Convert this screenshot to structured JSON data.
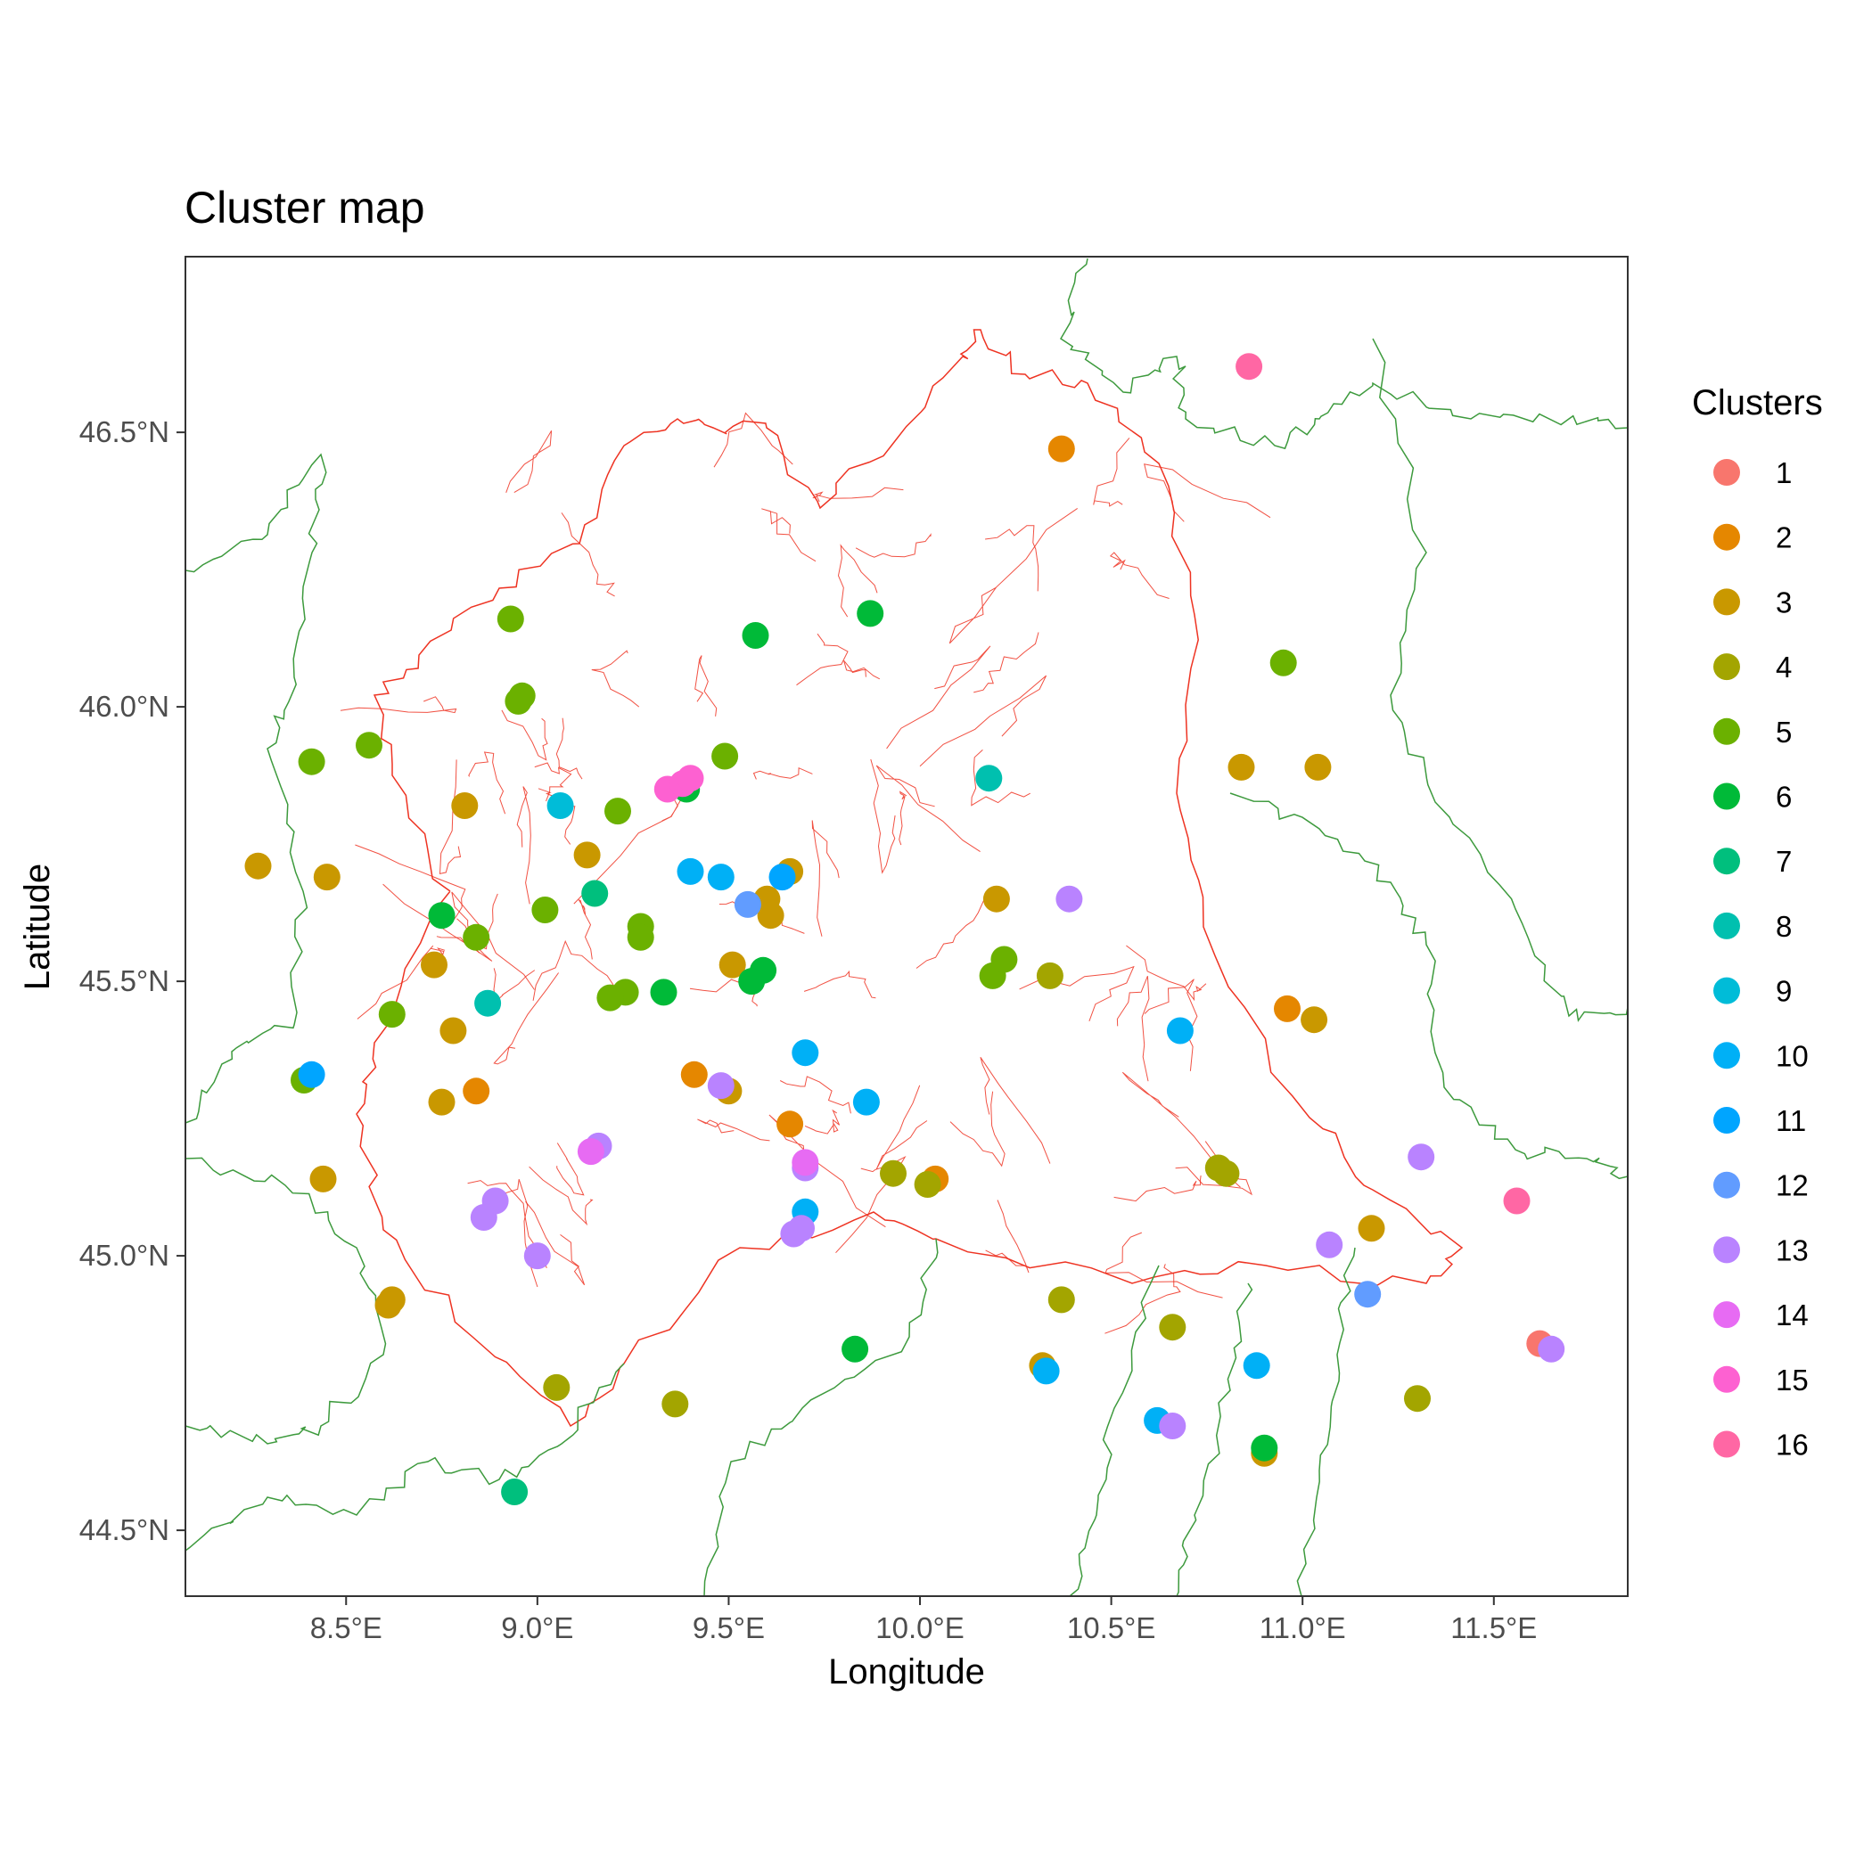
{
  "chart_data": {
    "type": "scatter",
    "title": "Cluster map",
    "xlabel": "Longitude",
    "ylabel": "Latitude",
    "xlim": [
      8.08,
      11.85
    ],
    "ylim": [
      44.38,
      46.82
    ],
    "x_ticks": [
      8.5,
      9.0,
      9.5,
      10.0,
      10.5,
      11.0,
      11.5
    ],
    "x_tick_labels": [
      "8.5°E",
      "9.0°E",
      "9.5°E",
      "10.0°E",
      "10.5°E",
      "11.0°E",
      "11.5°E"
    ],
    "y_ticks": [
      44.5,
      45.0,
      45.5,
      46.0,
      46.5
    ],
    "y_tick_labels": [
      "44.5°N",
      "45.0°N",
      "45.5°N",
      "46.0°N",
      "46.5°N"
    ],
    "grid": false,
    "legend_position": "right",
    "legend": {
      "title": "Clusters",
      "entries": [
        {
          "label": "1",
          "color": "#F8766D"
        },
        {
          "label": "2",
          "color": "#E58700"
        },
        {
          "label": "3",
          "color": "#C99800"
        },
        {
          "label": "4",
          "color": "#A3A500"
        },
        {
          "label": "5",
          "color": "#6BB100"
        },
        {
          "label": "6",
          "color": "#00BA38"
        },
        {
          "label": "7",
          "color": "#00BF7D"
        },
        {
          "label": "8",
          "color": "#00C0AF"
        },
        {
          "label": "9",
          "color": "#00BCD8"
        },
        {
          "label": "10",
          "color": "#00B0F6"
        },
        {
          "label": "11",
          "color": "#00A5FF"
        },
        {
          "label": "12",
          "color": "#619CFF"
        },
        {
          "label": "13",
          "color": "#B983FF"
        },
        {
          "label": "14",
          "color": "#E76BF3"
        },
        {
          "label": "15",
          "color": "#FD61D1"
        },
        {
          "label": "16",
          "color": "#FF67A4"
        }
      ]
    },
    "series": [
      {
        "name": "1",
        "points": [
          [
            11.62,
            44.84
          ]
        ]
      },
      {
        "name": "2",
        "points": [
          [
            10.37,
            46.47
          ],
          [
            10.96,
            45.45
          ],
          [
            9.41,
            45.33
          ],
          [
            8.84,
            45.3
          ],
          [
            9.66,
            45.24
          ],
          [
            10.04,
            45.14
          ]
        ]
      },
      {
        "name": "3",
        "points": [
          [
            8.27,
            45.71
          ],
          [
            8.45,
            45.69
          ],
          [
            8.81,
            45.82
          ],
          [
            9.13,
            45.73
          ],
          [
            9.66,
            45.7
          ],
          [
            9.6,
            45.65
          ],
          [
            9.61,
            45.62
          ],
          [
            10.2,
            45.65
          ],
          [
            8.73,
            45.53
          ],
          [
            9.51,
            45.53
          ],
          [
            8.78,
            45.41
          ],
          [
            8.75,
            45.28
          ],
          [
            9.5,
            45.3
          ],
          [
            8.44,
            45.14
          ],
          [
            8.62,
            44.92
          ],
          [
            8.61,
            44.91
          ],
          [
            10.84,
            45.89
          ],
          [
            11.04,
            45.89
          ],
          [
            11.03,
            45.43
          ],
          [
            11.18,
            45.05
          ],
          [
            10.32,
            44.8
          ],
          [
            10.9,
            44.64
          ]
        ]
      },
      {
        "name": "4",
        "points": [
          [
            9.93,
            45.15
          ],
          [
            10.02,
            45.13
          ],
          [
            10.34,
            45.51
          ],
          [
            10.78,
            45.16
          ],
          [
            10.8,
            45.15
          ],
          [
            10.37,
            44.92
          ],
          [
            10.66,
            44.87
          ],
          [
            9.05,
            44.76
          ],
          [
            9.36,
            44.73
          ],
          [
            11.3,
            44.74
          ]
        ]
      },
      {
        "name": "5",
        "points": [
          [
            8.41,
            45.9
          ],
          [
            8.56,
            45.93
          ],
          [
            8.93,
            46.16
          ],
          [
            8.96,
            46.02
          ],
          [
            8.95,
            46.01
          ],
          [
            9.21,
            45.81
          ],
          [
            9.49,
            45.91
          ],
          [
            9.02,
            45.63
          ],
          [
            8.84,
            45.58
          ],
          [
            9.27,
            45.6
          ],
          [
            9.27,
            45.58
          ],
          [
            9.23,
            45.48
          ],
          [
            9.19,
            45.47
          ],
          [
            8.62,
            45.44
          ],
          [
            8.39,
            45.32
          ],
          [
            10.19,
            45.51
          ],
          [
            10.22,
            45.54
          ],
          [
            10.95,
            46.08
          ]
        ]
      },
      {
        "name": "6",
        "points": [
          [
            9.57,
            46.13
          ],
          [
            9.87,
            46.17
          ],
          [
            9.39,
            45.85
          ],
          [
            8.75,
            45.62
          ],
          [
            9.59,
            45.52
          ],
          [
            9.56,
            45.5
          ],
          [
            9.33,
            45.48
          ],
          [
            9.83,
            44.83
          ],
          [
            10.9,
            44.65
          ]
        ]
      },
      {
        "name": "7",
        "points": [
          [
            9.15,
            45.66
          ],
          [
            8.94,
            44.57
          ]
        ]
      },
      {
        "name": "8",
        "points": [
          [
            8.87,
            45.46
          ],
          [
            10.18,
            45.87
          ]
        ]
      },
      {
        "name": "9",
        "points": [
          [
            9.06,
            45.82
          ]
        ]
      },
      {
        "name": "10",
        "points": [
          [
            9.4,
            45.7
          ],
          [
            9.48,
            45.69
          ],
          [
            9.7,
            45.37
          ],
          [
            9.86,
            45.28
          ],
          [
            9.7,
            45.08
          ],
          [
            10.68,
            45.41
          ],
          [
            10.33,
            44.79
          ],
          [
            10.62,
            44.7
          ],
          [
            10.88,
            44.8
          ]
        ]
      },
      {
        "name": "11",
        "points": [
          [
            8.41,
            45.33
          ],
          [
            9.64,
            45.69
          ]
        ]
      },
      {
        "name": "12",
        "points": [
          [
            9.55,
            45.64
          ],
          [
            11.17,
            44.93
          ]
        ]
      },
      {
        "name": "13",
        "points": [
          [
            10.39,
            45.65
          ],
          [
            9.48,
            45.31
          ],
          [
            9.16,
            45.2
          ],
          [
            8.89,
            45.1
          ],
          [
            8.86,
            45.07
          ],
          [
            9.0,
            45.0
          ],
          [
            9.67,
            45.04
          ],
          [
            9.69,
            45.05
          ],
          [
            9.7,
            45.16
          ],
          [
            11.07,
            45.02
          ],
          [
            11.31,
            45.18
          ],
          [
            11.65,
            44.83
          ],
          [
            10.66,
            44.69
          ]
        ]
      },
      {
        "name": "14",
        "points": [
          [
            9.14,
            45.19
          ],
          [
            9.7,
            45.17
          ]
        ]
      },
      {
        "name": "15",
        "points": [
          [
            9.34,
            45.85
          ],
          [
            9.38,
            45.86
          ],
          [
            9.4,
            45.87
          ]
        ]
      },
      {
        "name": "16",
        "points": [
          [
            10.86,
            46.62
          ],
          [
            11.56,
            45.1
          ]
        ]
      }
    ]
  }
}
